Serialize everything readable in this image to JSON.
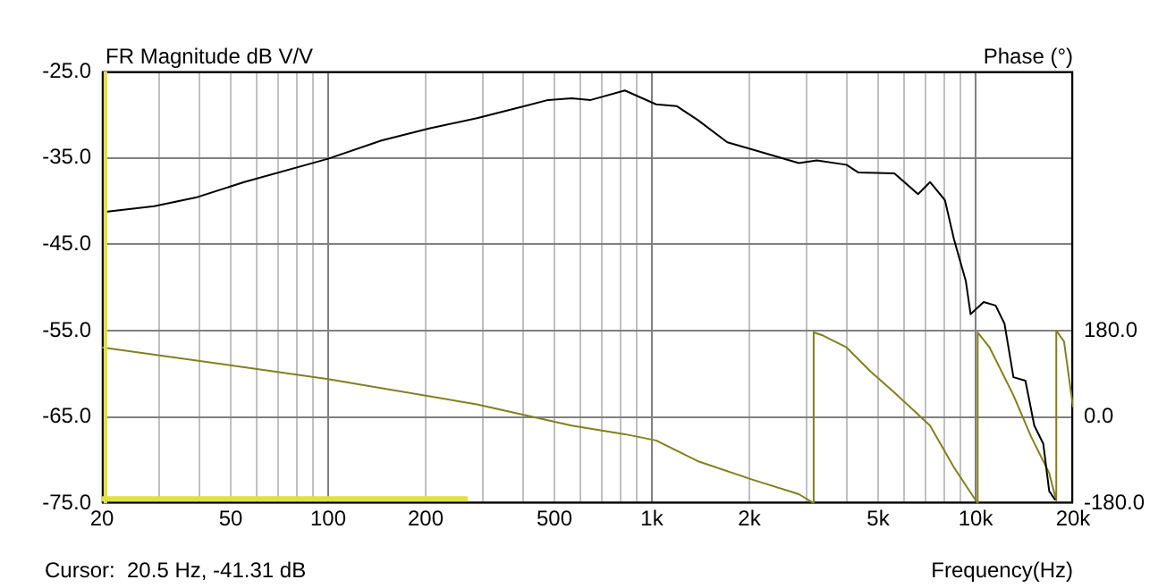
{
  "chart_data": {
    "type": "line",
    "ylabel": "FR Magnitude dB V/V",
    "y2label": "Phase (°)",
    "xlabel": "Frequency(Hz)",
    "annotations": [
      "Cursor:  20.5 Hz, -41.31 dB"
    ],
    "log": "x",
    "grid": true,
    "legend": false,
    "marker": "none",
    "line_style": "solid",
    "xlim": [
      20,
      20000
    ],
    "xticks": [
      20,
      {
        "value": 30,
        "label": null
      },
      {
        "value": 40,
        "label": null
      },
      50,
      {
        "value": 60,
        "label": null
      },
      {
        "value": 70,
        "label": null
      },
      {
        "value": 80,
        "label": null
      },
      {
        "value": 90,
        "label": null
      },
      100,
      200,
      {
        "value": 300,
        "label": null
      },
      {
        "value": 400,
        "label": null
      },
      500,
      {
        "value": 600,
        "label": null
      },
      {
        "value": 700,
        "label": null
      },
      {
        "value": 800,
        "label": null
      },
      {
        "value": 900,
        "label": null
      },
      {
        "value": 1000,
        "label": "1k"
      },
      {
        "value": 2000,
        "label": "2k"
      },
      {
        "value": 3000,
        "label": null
      },
      {
        "value": 4000,
        "label": null
      },
      {
        "value": 5000,
        "label": "5k"
      },
      {
        "value": 6000,
        "label": null
      },
      {
        "value": 7000,
        "label": null
      },
      {
        "value": 8000,
        "label": null
      },
      {
        "value": 9000,
        "label": null
      },
      {
        "value": 10000,
        "label": "10k"
      },
      {
        "value": 20000,
        "label": "20k"
      }
    ],
    "ylim": [
      -75,
      -25
    ],
    "yticks": [
      {
        "value": -75,
        "label": "-75.0"
      },
      {
        "value": -65,
        "label": "-65.0"
      },
      {
        "value": -55,
        "label": "-55.0"
      },
      {
        "value": -45,
        "label": "-45.0"
      },
      {
        "value": -35,
        "label": "-35.0"
      },
      {
        "value": -25,
        "label": "-25.0"
      }
    ],
    "y2lim": [
      -180,
      720
    ],
    "y2ticks": [
      {
        "value": -180,
        "label": "-180.0"
      },
      {
        "value": 0,
        "label": "0.0"
      },
      {
        "value": 180,
        "label": "180.0"
      }
    ],
    "ref_lines": [
      {
        "axis": "x",
        "value": 20.5,
        "color": "#e0e040"
      }
    ],
    "series": [
      {
        "color": "#000000",
        "x": [
          20,
          29,
          39,
          55,
          100,
          146,
          205,
          288,
          404,
          478,
          565,
          647,
          825,
          1030,
          1192,
          1384,
          1710,
          2030,
          2845,
          3230,
          3990,
          4345,
          5610,
          6640,
          7230,
          8040,
          8570,
          9330,
          9650,
          10590,
          11530,
          12280,
          13090,
          14250,
          15180,
          16180,
          16880,
          17620
        ],
        "values": [
          -41.3,
          -40.6,
          -39.6,
          -37.8,
          -35.1,
          -33,
          -31.6,
          -30.4,
          -29,
          -28.3,
          -28.1,
          -28.3,
          -27.2,
          -28.8,
          -29,
          -30.6,
          -33.2,
          -34,
          -35.6,
          -35.3,
          -35.8,
          -36.7,
          -36.8,
          -39.2,
          -37.8,
          -39.9,
          -44.4,
          -49.3,
          -53.1,
          -51.7,
          -52.1,
          -54.2,
          -60.4,
          -60.8,
          -66,
          -68.1,
          -73.6,
          -74.6
        ]
      },
      {
        "color": "#808020",
        "axis": "y2",
        "x": [
          20,
          100,
          288,
          565,
          825,
          1030,
          1384,
          2030,
          2845,
          3160,
          3160,
          3370,
          3990,
          4730,
          5610,
          7230,
          8570,
          10150,
          10150,
          11040,
          13090,
          14860,
          16880,
          17750,
          17750,
          18760,
          20000
        ],
        "values": [
          145,
          79,
          26,
          -18,
          -36,
          -49,
          -92,
          -130,
          -161,
          -180,
          176,
          170,
          145,
          95,
          51,
          -18,
          -105,
          -180,
          176,
          145,
          45,
          -42,
          -117,
          -174,
          180,
          157,
          20
        ]
      },
      {
        "color": "#e0e040",
        "x": [
          20,
          270
        ],
        "values": [
          -74.5,
          -74.5
        ]
      }
    ]
  }
}
